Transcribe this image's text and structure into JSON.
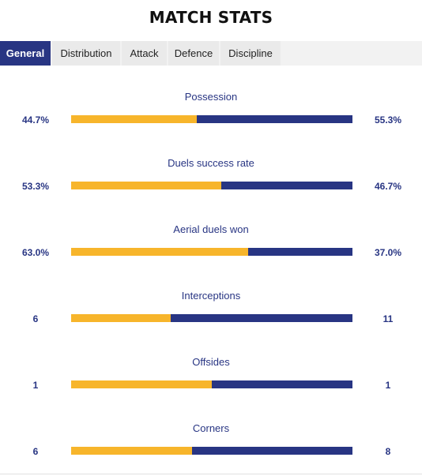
{
  "title": "MATCH STATS",
  "tabs": [
    {
      "label": "General",
      "active": true
    },
    {
      "label": "Distribution",
      "active": false
    },
    {
      "label": "Attack",
      "active": false
    },
    {
      "label": "Defence",
      "active": false
    },
    {
      "label": "Discipline",
      "active": false
    }
  ],
  "colors": {
    "home": "#f7b52b",
    "away": "#283583",
    "active_tab": "#283583"
  },
  "stats": [
    {
      "label": "Possession",
      "home": "44.7%",
      "away": "55.3%",
      "home_share": 0.447
    },
    {
      "label": "Duels success rate",
      "home": "53.3%",
      "away": "46.7%",
      "home_share": 0.533
    },
    {
      "label": "Aerial duels won",
      "home": "63.0%",
      "away": "37.0%",
      "home_share": 0.63
    },
    {
      "label": "Interceptions",
      "home": "6",
      "away": "11",
      "home_share": 0.353
    },
    {
      "label": "Offsides",
      "home": "1",
      "away": "1",
      "home_share": 0.5
    },
    {
      "label": "Corners",
      "home": "6",
      "away": "8",
      "home_share": 0.429
    }
  ]
}
